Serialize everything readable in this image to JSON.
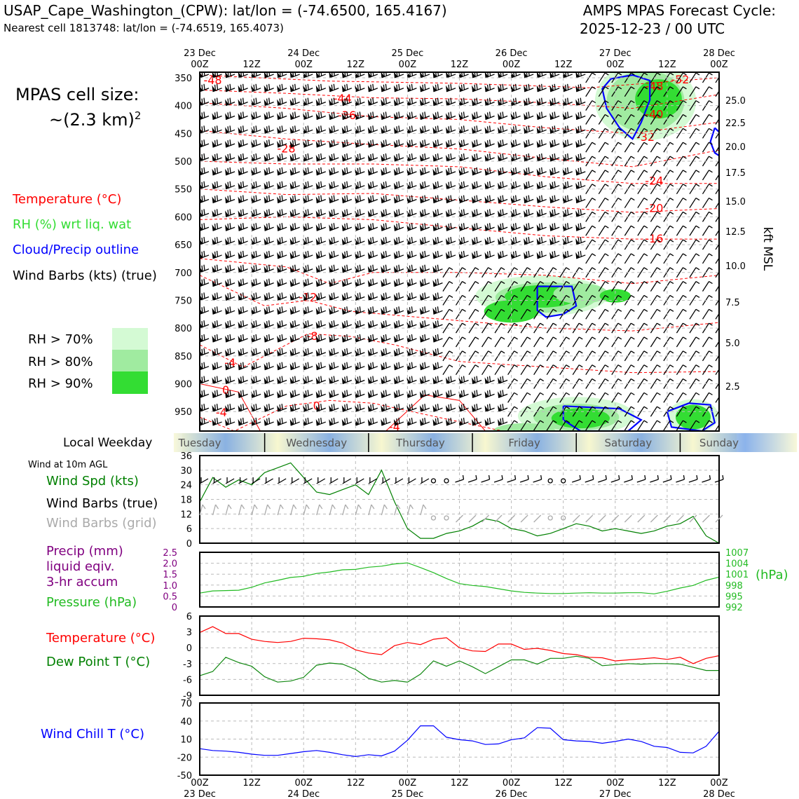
{
  "header": {
    "station": "USAP_Cape_Washington_(CPW): lat/lon = (-74.6500, 165.4167)",
    "nearest": "Nearest cell 1813748: lat/lon = (-74.6519, 165.4073)",
    "forecast_title": "AMPS MPAS Forecast Cycle:",
    "forecast_cycle": "2025-12-23 / 00 UTC"
  },
  "left_panel": {
    "cell_size_title": "MPAS cell size:",
    "cell_size_value": "~(2.3 km)",
    "cell_size_exp": "2",
    "legend": {
      "temperature": "Temperature (°C)",
      "rh": "RH (%) wrt liq. wat",
      "cloud": "Cloud/Precip outline",
      "wind": "Wind Barbs (kts) (true)"
    },
    "rh_levels": [
      "RH > 70%",
      "RH > 80%",
      "RH > 90%"
    ],
    "weekday_label": "Local Weekday",
    "wind10_title": "Wind at 10m AGL",
    "wind_spd": "Wind Spd (kts)",
    "wind_barbs_true": "Wind Barbs (true)",
    "wind_barbs_grid": "Wind Barbs (grid)",
    "precip_1": "Precip (mm)",
    "precip_2": "liquid eqiv.",
    "precip_3": "3-hr accum",
    "pressure": "Pressure (hPa)",
    "temp": "Temperature (°C)",
    "dewpoint": "Dew Point T (°C)",
    "windchill": "Wind Chill T (°C)"
  },
  "colors": {
    "temperature": "#ff0000",
    "rh": "#33dd33",
    "cloud": "#0000ff",
    "wind_speed": "#008000",
    "pressure": "#22bb22",
    "precip": "#800080",
    "dewpoint": "#118811",
    "windchill": "#0000ff",
    "grid_barbs": "#aaaaaa",
    "rh70": "#d4fad4",
    "rh80": "#a0eba0",
    "rh90": "#33dd33"
  },
  "time_axis": {
    "top_labels": [
      [
        "23 Dec",
        "00Z"
      ],
      [
        "",
        "12Z"
      ],
      [
        "24 Dec",
        "00Z"
      ],
      [
        "",
        "12Z"
      ],
      [
        "25 Dec",
        "00Z"
      ],
      [
        "",
        "12Z"
      ],
      [
        "26 Dec",
        "00Z"
      ],
      [
        "",
        "12Z"
      ],
      [
        "27 Dec",
        "00Z"
      ],
      [
        "",
        "12Z"
      ],
      [
        "28 Dec",
        "00Z"
      ]
    ],
    "bottom_labels": [
      [
        "00Z",
        "23 Dec"
      ],
      [
        "12Z",
        ""
      ],
      [
        "00Z",
        "24 Dec"
      ],
      [
        "12Z",
        ""
      ],
      [
        "00Z",
        "25 Dec"
      ],
      [
        "12Z",
        ""
      ],
      [
        "00Z",
        "26 Dec"
      ],
      [
        "12Z",
        ""
      ],
      [
        "00Z",
        "27 Dec"
      ],
      [
        "12Z",
        ""
      ],
      [
        "00Z",
        "28 Dec"
      ]
    ],
    "weekdays": [
      "Tuesday",
      "Wednesday",
      "Thursday",
      "Friday",
      "Saturday",
      "Sunday"
    ]
  },
  "chart_data": [
    {
      "type": "heatmap",
      "name": "cross-section",
      "x_range_hours": [
        0,
        120
      ],
      "pressure_ticks": [
        350,
        400,
        450,
        500,
        550,
        600,
        650,
        700,
        750,
        800,
        850,
        900,
        950
      ],
      "height_ticks_kft": [
        "25.0",
        "22.5",
        "20.0",
        "17.5",
        "15.0",
        "12.5",
        "10.0",
        "7.5",
        "5.0",
        "2.5"
      ],
      "height_axis_label": "kft MSL",
      "temperature_contours": [
        {
          "label": "-48",
          "hour": 3,
          "p": 355
        },
        {
          "label": "-44",
          "hour": 33,
          "p": 388
        },
        {
          "label": "-36",
          "hour": 34,
          "p": 418
        },
        {
          "label": "-28",
          "hour": 20,
          "p": 478
        },
        {
          "label": "-52",
          "hour": 111,
          "p": 354
        },
        {
          "label": "-48",
          "hour": 105,
          "p": 366
        },
        {
          "label": "-40",
          "hour": 105,
          "p": 416
        },
        {
          "label": "-32",
          "hour": 103,
          "p": 457
        },
        {
          "label": "-24",
          "hour": 105,
          "p": 536
        },
        {
          "label": "-20",
          "hour": 105,
          "p": 585
        },
        {
          "label": "-16",
          "hour": 105,
          "p": 640
        },
        {
          "label": "-12",
          "hour": 25,
          "p": 745
        },
        {
          "label": "-8",
          "hour": 26,
          "p": 815
        },
        {
          "label": "-4",
          "hour": 7,
          "p": 863
        },
        {
          "label": "0",
          "hour": 6,
          "p": 912
        },
        {
          "label": "-4",
          "hour": 5,
          "p": 952
        },
        {
          "label": "0",
          "hour": 27,
          "p": 940
        },
        {
          "label": "-4",
          "hour": 45,
          "p": 978
        }
      ]
    },
    {
      "type": "line",
      "name": "surface-wind",
      "y_ticks": [
        0,
        6,
        12,
        18,
        24,
        30,
        36
      ],
      "ylim": [
        0,
        36
      ],
      "x_hours": [
        0,
        3,
        6,
        9,
        12,
        15,
        18,
        21,
        24,
        27,
        30,
        33,
        36,
        39,
        42,
        45,
        48,
        51,
        54,
        57,
        60,
        63,
        66,
        69,
        72,
        75,
        78,
        81,
        84,
        87,
        90,
        93,
        96,
        99,
        102,
        105,
        108,
        111,
        114,
        117,
        120
      ],
      "series": [
        {
          "values": [
            17,
            27,
            23,
            26,
            24,
            29,
            31,
            33,
            27,
            21,
            20,
            22,
            24,
            20,
            30,
            17,
            6,
            2,
            2,
            4,
            5,
            7,
            10,
            9,
            6,
            5,
            3,
            4,
            6,
            8,
            7,
            5,
            6,
            5,
            4,
            5,
            7,
            8,
            11,
            3,
            0
          ]
        }
      ]
    },
    {
      "type": "line",
      "name": "precip-pressure",
      "precip_ticks": [
        "0",
        "0.5",
        "1.0",
        "1.5",
        "2.0",
        "2.5"
      ],
      "pressure_ticks": [
        "992",
        "995",
        "998",
        "1001",
        "1004",
        "1007"
      ],
      "pressure_unit": "(hPa)",
      "ylim": [
        992,
        1007
      ],
      "x_hours": [
        0,
        3,
        6,
        9,
        12,
        15,
        18,
        21,
        24,
        27,
        30,
        33,
        36,
        39,
        42,
        45,
        48,
        51,
        54,
        57,
        60,
        63,
        66,
        69,
        72,
        75,
        78,
        81,
        84,
        87,
        90,
        93,
        96,
        99,
        102,
        105,
        108,
        111,
        114,
        117,
        120
      ],
      "series": [
        {
          "values": [
            995.8,
            996.4,
            996.5,
            996.6,
            997.4,
            998.6,
            999.3,
            1000.1,
            1000.4,
            1001.2,
            1001.6,
            1002.2,
            1002.3,
            1002.9,
            1003.2,
            1003.8,
            1004.1,
            1002.8,
            1001.4,
            999.8,
            998.4,
            997.9,
            997.6,
            997.0,
            996.4,
            996.0,
            995.8,
            995.7,
            995.7,
            995.8,
            995.9,
            995.8,
            995.8,
            995.9,
            995.9,
            995.6,
            996.3,
            997.2,
            997.9,
            999.3,
            1000.2
          ]
        }
      ]
    },
    {
      "type": "line",
      "name": "temperature-dewpoint",
      "y_ticks": [
        -9,
        -6,
        -3,
        0,
        3,
        6
      ],
      "ylim": [
        -9,
        6
      ],
      "x_hours": [
        0,
        3,
        6,
        9,
        12,
        15,
        18,
        21,
        24,
        27,
        30,
        33,
        36,
        39,
        42,
        45,
        48,
        51,
        54,
        57,
        60,
        63,
        66,
        69,
        72,
        75,
        78,
        81,
        84,
        87,
        90,
        93,
        96,
        99,
        102,
        105,
        108,
        111,
        114,
        117,
        120
      ],
      "series": [
        {
          "name": "Temperature",
          "values": [
            2.9,
            4.0,
            2.7,
            2.7,
            1.6,
            1.2,
            1.0,
            1.2,
            1.8,
            1.7,
            1.5,
            0.9,
            -0.4,
            -1.0,
            -1.3,
            0.4,
            1.0,
            0.6,
            1.6,
            1.9,
            0.0,
            -0.6,
            -0.7,
            0.7,
            0.7,
            -0.3,
            -0.1,
            -0.5,
            -1.1,
            -1.3,
            -1.8,
            -1.9,
            -2.5,
            -2.3,
            -2.1,
            -1.9,
            -2.2,
            -1.8,
            -3.0,
            -2.0,
            -1.5
          ]
        },
        {
          "name": "Dew Point",
          "values": [
            -5.3,
            -4.5,
            -1.8,
            -2.8,
            -3.5,
            -5.5,
            -6.5,
            -6.3,
            -5.6,
            -3.3,
            -2.9,
            -3.1,
            -4.1,
            -5.8,
            -6.5,
            -6.2,
            -6.5,
            -5.0,
            -2.5,
            -3.5,
            -2.5,
            -3.6,
            -4.9,
            -3.6,
            -2.3,
            -2.3,
            -3.1,
            -2.0,
            -2.0,
            -1.6,
            -2.0,
            -3.4,
            -3.2,
            -3.0,
            -3.1,
            -3.0,
            -3.0,
            -3.1,
            -3.7,
            -4.3,
            -4.3
          ]
        }
      ]
    },
    {
      "type": "line",
      "name": "wind-chill",
      "y_ticks": [
        -50,
        -20,
        10,
        40,
        70
      ],
      "ylim": [
        -50,
        70
      ],
      "x_hours": [
        0,
        3,
        6,
        9,
        12,
        15,
        18,
        21,
        24,
        27,
        30,
        33,
        36,
        39,
        42,
        45,
        48,
        51,
        54,
        57,
        60,
        63,
        66,
        69,
        72,
        75,
        78,
        81,
        84,
        87,
        90,
        93,
        96,
        99,
        102,
        105,
        108,
        111,
        114,
        117,
        120
      ],
      "series": [
        {
          "values": [
            -6,
            -9,
            -10,
            -12,
            -15,
            -17,
            -17,
            -14,
            -11,
            -9,
            -12,
            -16,
            -19,
            -16,
            -18,
            -10,
            8,
            32,
            32,
            13,
            9,
            7,
            1,
            2,
            9,
            12,
            29,
            28,
            9,
            7,
            6,
            3,
            6,
            10,
            6,
            -2,
            -4,
            -12,
            -13,
            -2,
            23
          ]
        }
      ]
    }
  ]
}
